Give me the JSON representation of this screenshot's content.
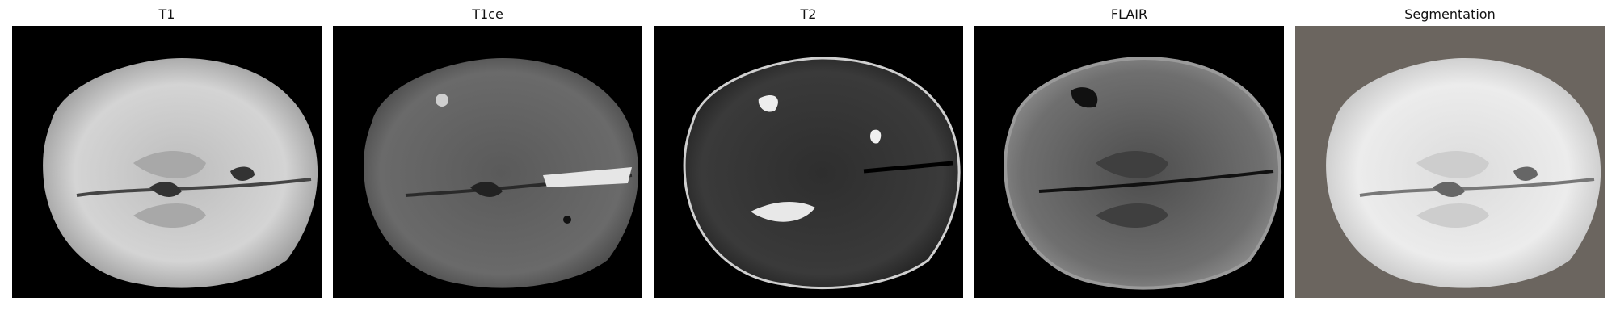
{
  "figure": {
    "panels": [
      {
        "title": "T1",
        "background": "#000000",
        "modality": "t1-weighted-axial-mri"
      },
      {
        "title": "T1ce",
        "background": "#000000",
        "modality": "t1-contrast-enhanced-axial-mri"
      },
      {
        "title": "T2",
        "background": "#000000",
        "modality": "t2-weighted-axial-mri"
      },
      {
        "title": "FLAIR",
        "background": "#000000",
        "modality": "flair-axial-mri"
      },
      {
        "title": "Segmentation",
        "background": "#6b655f",
        "modality": "t1-with-segmentation-overlay"
      }
    ]
  }
}
